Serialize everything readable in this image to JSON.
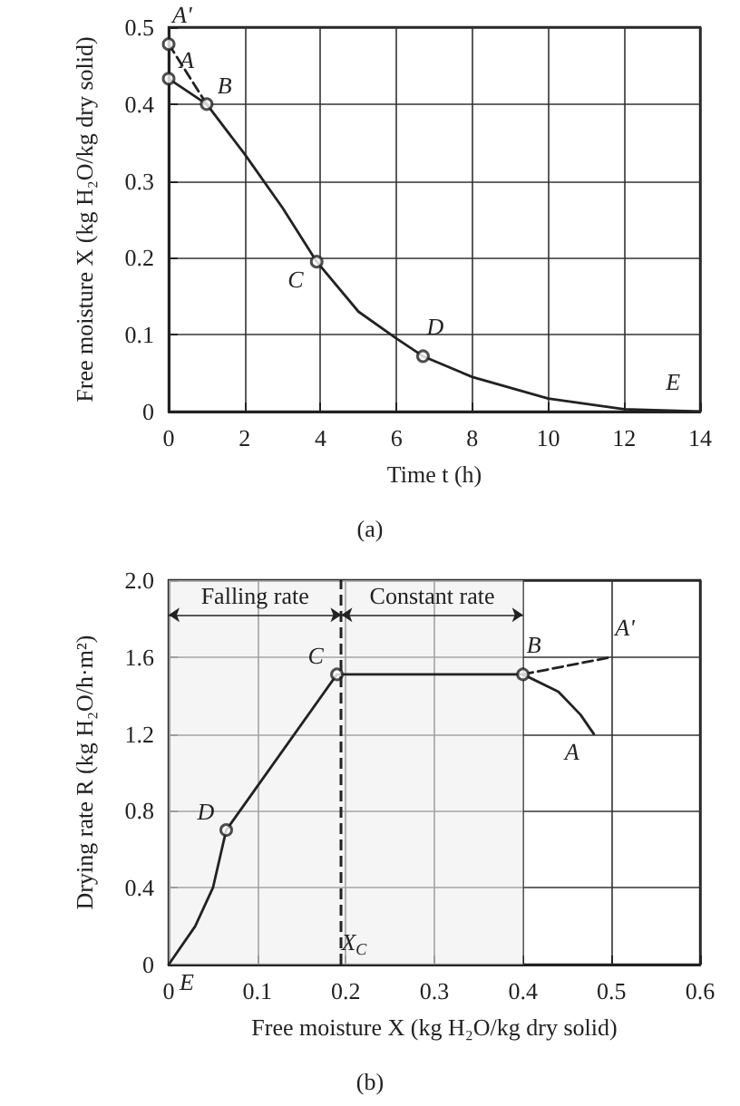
{
  "chart_data": [
    {
      "type": "line",
      "title": "(a)",
      "xlabel": "Time t (h)",
      "ylabel": "Free moisture X (kg H₂O/kg dry solid)",
      "xlim": [
        0,
        14
      ],
      "xticks": [
        0,
        2,
        4,
        6,
        8,
        10,
        12,
        14
      ],
      "ylim": [
        0,
        0.5
      ],
      "yticks": [
        0,
        0.1,
        0.2,
        0.3,
        0.4,
        0.5
      ],
      "grid": true,
      "series": [
        {
          "type": "line",
          "color": "#222222",
          "marker": "none",
          "line_style": "solid",
          "x": [
            0,
            1,
            2,
            3,
            3.9,
            5,
            6,
            6.7,
            8,
            10,
            12,
            14
          ],
          "values": [
            0.433,
            0.4,
            0.335,
            0.265,
            0.195,
            0.13,
            0.095,
            0.072,
            0.045,
            0.017,
            0.003,
            0
          ]
        },
        {
          "type": "line",
          "color": "#222222",
          "marker": "none",
          "line_style": "dashed",
          "x": [
            0,
            1
          ],
          "values": [
            0.478,
            0.4
          ]
        },
        {
          "type": "scatter",
          "color": "#222222",
          "marker": "circle",
          "x": [
            0,
            0,
            1,
            3.9,
            6.7
          ],
          "values": [
            0.478,
            0.433,
            0.4,
            0.195,
            0.072
          ]
        }
      ],
      "annotations": [
        {
          "text": "A'",
          "x": 0,
          "y": 0.478
        },
        {
          "text": "A",
          "x": 0,
          "y": 0.433
        },
        {
          "text": "B",
          "x": 1,
          "y": 0.4
        },
        {
          "text": "C",
          "x": 3.9,
          "y": 0.195
        },
        {
          "text": "D",
          "x": 6.7,
          "y": 0.072
        },
        {
          "text": "E",
          "x": 13,
          "y": 0
        }
      ]
    },
    {
      "type": "line",
      "title": "(b)",
      "xlabel": "Free moisture X (kg H₂O/kg dry solid)",
      "ylabel": "Drying rate R (kg H₂O/h·m²)",
      "xlim": [
        0,
        0.6
      ],
      "xticks": [
        0,
        0.1,
        0.2,
        0.3,
        0.4,
        0.5,
        0.6
      ],
      "ylim": [
        0,
        2.0
      ],
      "yticks": [
        0,
        0.4,
        0.8,
        1.2,
        1.6,
        {
          "value": 2.0,
          "label": "2.0"
        }
      ],
      "grid": true,
      "series": [
        {
          "type": "line",
          "color": "#222222",
          "marker": "none",
          "line_style": "solid",
          "x": [
            0,
            0.03,
            0.05,
            0.06,
            0.065,
            0.19,
            0.4,
            0.44,
            0.465,
            0.48
          ],
          "values": [
            0,
            0.2,
            0.4,
            0.6,
            0.7,
            1.51,
            1.51,
            1.42,
            1.3,
            1.2
          ]
        },
        {
          "type": "line",
          "color": "#222222",
          "marker": "none",
          "line_style": "dashed",
          "x": [
            0.4,
            0.5
          ],
          "values": [
            1.51,
            1.6
          ]
        },
        {
          "type": "scatter",
          "color": "#222222",
          "marker": "circle",
          "x": [
            0.065,
            0.19,
            0.4
          ],
          "values": [
            0.7,
            1.51,
            1.51
          ]
        }
      ],
      "ref_lines": [
        {
          "axis": "x",
          "value": 0.195,
          "label": "X$_{C}$",
          "line_style": "dashed"
        }
      ],
      "bands": [
        {
          "axis": "x",
          "from": 0,
          "to": 0.195,
          "label": "Falling rate"
        },
        {
          "axis": "x",
          "from": 0.195,
          "to": 0.4,
          "label": "Constant rate"
        }
      ],
      "annotations": [
        {
          "text": "A'",
          "x": 0.5,
          "y": 1.6
        },
        {
          "text": "A",
          "x": 0.48,
          "y": 1.2
        },
        {
          "text": "B",
          "x": 0.4,
          "y": 1.51
        },
        {
          "text": "C",
          "x": 0.19,
          "y": 1.51
        },
        {
          "text": "D",
          "x": 0.065,
          "y": 0.7
        },
        {
          "text": "E",
          "x": 0,
          "y": 0
        }
      ]
    }
  ]
}
